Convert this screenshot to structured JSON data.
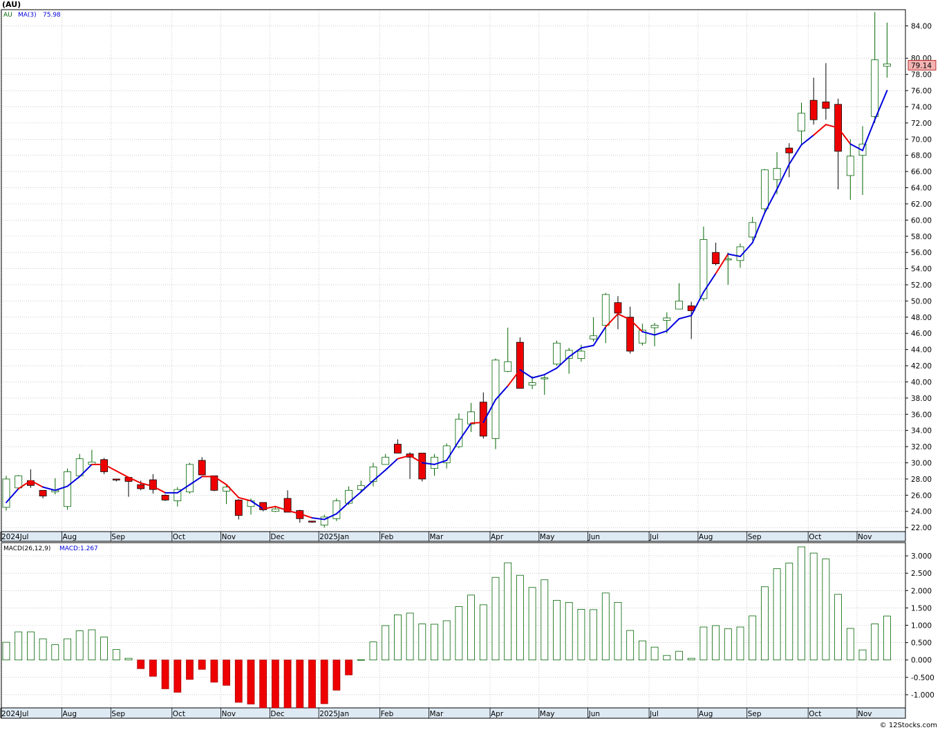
{
  "header": {
    "symbol": "(AU)"
  },
  "watermark": "© 12Stocks.com",
  "colors": {
    "up": "#006400",
    "down": "#ee0000",
    "ma_up": "#0000dd",
    "ma_down": "#ee0000",
    "grid": "#aaaaaa",
    "price_tag_bg": "#f4b3b3"
  },
  "chart_data": [
    {
      "type": "candlestick",
      "period": "weekly",
      "legend": {
        "symbol": "AU",
        "ma_label": "MA(3)",
        "ma_value": "75.98"
      },
      "last_price": "79.14",
      "ylim": [
        21.5,
        86.0
      ],
      "y_ticks": [
        "22.00",
        "24.00",
        "26.00",
        "28.00",
        "30.00",
        "32.00",
        "34.00",
        "36.00",
        "38.00",
        "40.00",
        "42.00",
        "44.00",
        "46.00",
        "48.00",
        "50.00",
        "52.00",
        "54.00",
        "56.00",
        "58.00",
        "60.00",
        "62.00",
        "64.00",
        "66.00",
        "68.00",
        "70.00",
        "72.00",
        "74.00",
        "76.00",
        "78.00",
        "80.00",
        "84.00"
      ],
      "month_labels": [
        "2024Jul",
        "Aug",
        "Sep",
        "Oct",
        "Nov",
        "Dec",
        "2025Jan",
        "Feb",
        "Mar",
        "Apr",
        "May",
        "Jun",
        "Jul",
        "Aug",
        "Sep",
        "Oct",
        "Nov"
      ],
      "month_label_bars": [
        0,
        5,
        9,
        14,
        18,
        22,
        26,
        31,
        35,
        40,
        44,
        48,
        53,
        57,
        61,
        66,
        70
      ],
      "ohlc": [
        [
          24.5,
          28.4,
          24.1,
          28.0
        ],
        [
          26.9,
          28.5,
          26.9,
          28.4
        ],
        [
          27.8,
          29.2,
          26.9,
          27.2
        ],
        [
          26.6,
          26.6,
          25.6,
          25.9
        ],
        [
          26.4,
          28.1,
          26.1,
          26.6
        ],
        [
          24.6,
          29.3,
          24.2,
          28.9
        ],
        [
          28.4,
          31.1,
          28.2,
          30.5
        ],
        [
          29.8,
          31.6,
          29.7,
          30.1
        ],
        [
          30.4,
          30.6,
          28.6,
          28.9
        ],
        [
          28.0,
          28.0,
          27.7,
          27.9
        ],
        [
          28.2,
          28.3,
          25.8,
          27.7
        ],
        [
          27.3,
          27.8,
          26.6,
          26.8
        ],
        [
          27.9,
          28.6,
          26.2,
          26.7
        ],
        [
          26.0,
          26.1,
          25.3,
          25.4
        ],
        [
          25.3,
          27.0,
          24.6,
          26.7
        ],
        [
          26.4,
          30.0,
          26.2,
          29.8
        ],
        [
          30.3,
          30.7,
          28.7,
          28.5
        ],
        [
          28.4,
          28.4,
          26.5,
          26.6
        ],
        [
          26.5,
          27.4,
          24.9,
          27.0
        ],
        [
          25.4,
          25.5,
          23.0,
          23.5
        ],
        [
          24.6,
          25.6,
          23.6,
          25.3
        ],
        [
          25.1,
          25.1,
          24.0,
          24.2
        ],
        [
          24.0,
          24.6,
          23.9,
          24.3
        ],
        [
          25.6,
          26.6,
          24.0,
          23.9
        ],
        [
          24.1,
          24.2,
          22.6,
          23.1
        ],
        [
          22.8,
          22.8,
          22.6,
          22.7
        ],
        [
          22.3,
          23.6,
          22.0,
          23.3
        ],
        [
          23.1,
          25.6,
          22.8,
          25.3
        ],
        [
          25.0,
          27.1,
          24.8,
          26.6
        ],
        [
          26.7,
          27.8,
          26.4,
          27.2
        ],
        [
          27.7,
          30.0,
          27.1,
          29.5
        ],
        [
          29.8,
          31.1,
          29.8,
          30.7
        ],
        [
          32.3,
          32.9,
          31.2,
          31.2
        ],
        [
          31.1,
          31.3,
          28.0,
          30.7
        ],
        [
          31.2,
          31.2,
          27.7,
          28.0
        ],
        [
          29.3,
          31.1,
          28.4,
          30.7
        ],
        [
          30.0,
          32.4,
          29.3,
          32.1
        ],
        [
          32.0,
          36.1,
          31.8,
          35.4
        ],
        [
          34.8,
          37.4,
          33.8,
          36.3
        ],
        [
          37.5,
          38.7,
          33.0,
          33.3
        ],
        [
          33.0,
          42.9,
          31.7,
          42.7
        ],
        [
          41.3,
          46.7,
          41.2,
          42.5
        ],
        [
          44.9,
          45.5,
          39.3,
          39.2
        ],
        [
          39.6,
          40.7,
          39.1,
          39.9
        ],
        [
          40.4,
          40.8,
          38.4,
          40.5
        ],
        [
          42.2,
          45.1,
          42.0,
          44.8
        ],
        [
          42.9,
          44.2,
          41.0,
          43.9
        ],
        [
          42.9,
          44.6,
          42.5,
          43.8
        ],
        [
          45.3,
          48.0,
          45.0,
          45.7
        ],
        [
          47.0,
          51.0,
          44.8,
          50.8
        ],
        [
          49.8,
          50.6,
          46.5,
          48.5
        ],
        [
          48.0,
          49.3,
          43.5,
          43.8
        ],
        [
          44.8,
          47.2,
          44.5,
          46.4
        ],
        [
          46.7,
          47.3,
          44.4,
          47.0
        ],
        [
          47.6,
          48.6,
          46.0,
          47.9
        ],
        [
          49.0,
          52.2,
          49.0,
          50.0
        ],
        [
          49.4,
          49.9,
          45.3,
          48.8
        ],
        [
          50.3,
          59.2,
          50.0,
          57.6
        ],
        [
          56.0,
          57.2,
          54.4,
          54.6
        ],
        [
          55.2,
          56.0,
          52.0,
          55.2
        ],
        [
          55.0,
          57.1,
          54.1,
          56.7
        ],
        [
          57.9,
          60.4,
          57.5,
          59.7
        ],
        [
          61.4,
          66.3,
          61.0,
          66.2
        ],
        [
          65.0,
          68.4,
          63.2,
          66.4
        ],
        [
          68.9,
          69.5,
          65.3,
          68.3
        ],
        [
          71.0,
          74.5,
          69.3,
          73.2
        ],
        [
          74.8,
          77.6,
          71.8,
          72.4
        ],
        [
          74.6,
          79.4,
          72.4,
          73.8
        ],
        [
          74.3,
          75.0,
          63.8,
          68.5
        ],
        [
          65.5,
          70.0,
          62.5,
          67.9
        ],
        [
          68.0,
          71.6,
          63.1,
          69.4
        ],
        [
          72.8,
          85.7,
          72.0,
          79.8
        ],
        [
          79.0,
          84.4,
          77.6,
          79.3
        ]
      ],
      "ma3": [
        25.1,
        26.8,
        27.8,
        27.0,
        26.6,
        27.1,
        28.3,
        29.8,
        29.8,
        29.0,
        28.2,
        27.5,
        27.1,
        26.3,
        26.3,
        27.3,
        28.3,
        28.3,
        27.3,
        25.7,
        25.3,
        24.3,
        24.6,
        24.1,
        23.7,
        23.2,
        23.0,
        23.7,
        25.1,
        26.4,
        27.8,
        29.1,
        30.5,
        30.9,
        30.0,
        29.8,
        30.3,
        32.7,
        34.9,
        35.0,
        37.8,
        39.5,
        41.5,
        40.5,
        40.9,
        41.7,
        43.1,
        44.2,
        44.5,
        46.8,
        48.4,
        47.7,
        46.2,
        45.8,
        46.3,
        47.8,
        48.2,
        51.1,
        53.4,
        55.8,
        55.5,
        57.2,
        60.9,
        63.8,
        66.9,
        69.3,
        70.5,
        71.8,
        71.4,
        69.4,
        68.6,
        72.4,
        76.0
      ],
      "ma_direction_down": [
        false,
        false,
        true,
        true,
        false,
        false,
        false,
        false,
        true,
        true,
        true,
        true,
        true,
        true,
        false,
        false,
        false,
        true,
        true,
        true,
        true,
        false,
        true,
        true,
        true,
        true,
        false,
        false,
        false,
        false,
        false,
        false,
        false,
        true,
        true,
        false,
        false,
        false,
        false,
        true,
        false,
        false,
        true,
        false,
        false,
        false,
        false,
        false,
        false,
        false,
        true,
        true,
        true,
        false,
        false,
        false,
        false,
        false,
        false,
        true,
        false,
        false,
        false,
        false,
        false,
        false,
        false,
        true,
        true,
        true,
        false,
        false,
        false
      ]
    },
    {
      "type": "histogram",
      "title": "MACD(26,12,9)",
      "legend_value_label": "MACD:1.267",
      "ylim": [
        -1.38,
        3.38
      ],
      "y_ticks": [
        "-1.000",
        "-0.500",
        "0.000",
        "0.500",
        "1.000",
        "1.500",
        "2.000",
        "2.500",
        "3.000"
      ],
      "month_labels": [
        "2024Jul",
        "Aug",
        "Sep",
        "Oct",
        "Nov",
        "Dec",
        "2025Jan",
        "Feb",
        "Mar",
        "Apr",
        "May",
        "Jun",
        "Jul",
        "Aug",
        "Sep",
        "Oct",
        "Nov"
      ],
      "values": [
        0.51,
        0.81,
        0.81,
        0.61,
        0.44,
        0.61,
        0.84,
        0.87,
        0.66,
        0.3,
        0.05,
        -0.25,
        -0.47,
        -0.83,
        -0.93,
        -0.56,
        -0.27,
        -0.64,
        -0.73,
        -1.22,
        -1.27,
        -1.38,
        -1.38,
        -1.38,
        -1.38,
        -1.38,
        -1.26,
        -0.87,
        -0.43,
        0.01,
        0.52,
        0.99,
        1.3,
        1.35,
        1.04,
        1.03,
        1.13,
        1.54,
        1.87,
        1.59,
        2.38,
        2.8,
        2.44,
        2.09,
        2.31,
        1.72,
        1.66,
        1.46,
        1.45,
        1.93,
        1.66,
        0.85,
        0.55,
        0.37,
        0.13,
        0.25,
        0.05,
        0.95,
        0.99,
        0.9,
        0.95,
        1.27,
        2.11,
        2.63,
        2.79,
        3.26,
        3.08,
        2.91,
        1.89,
        0.91,
        0.29,
        1.04,
        1.267
      ]
    }
  ]
}
